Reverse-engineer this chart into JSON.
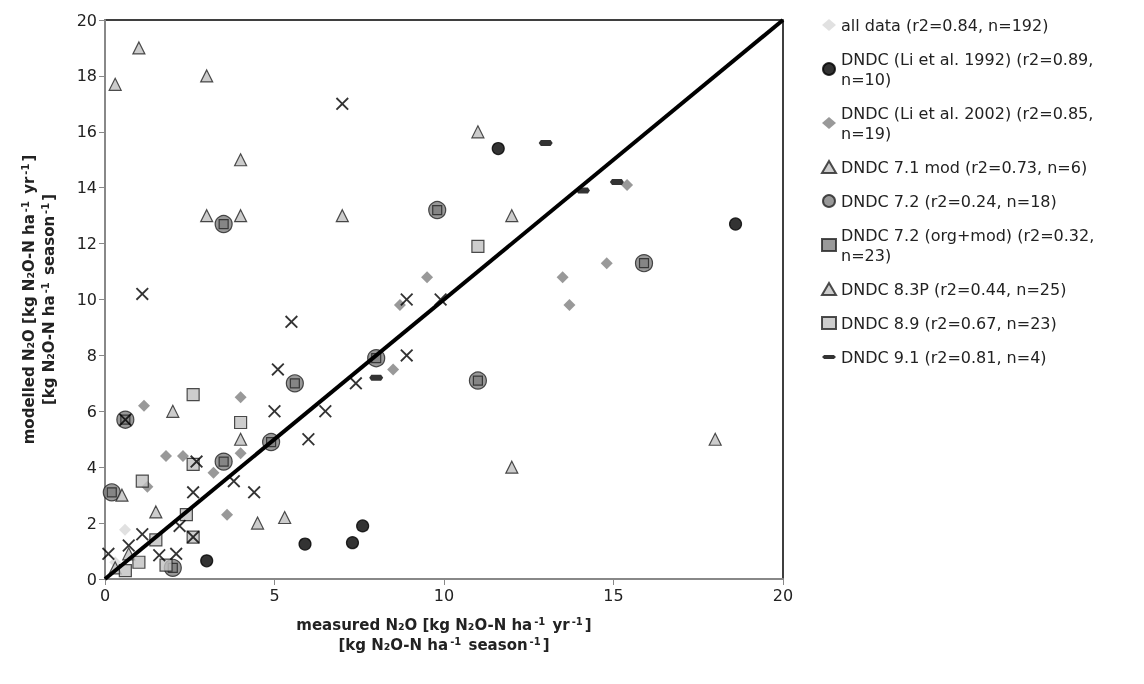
{
  "chart_data": {
    "type": "scatter",
    "xlabel": "measured N₂O [kg N₂O-N ha$^{-1}$ yr$^{-1}$]\n[kg N₂O-N ha$^{-1}$ season$^{-1}$]",
    "ylabel": "modelled N₂O [kg N₂O-N ha$^{-1}$ yr$^{-1}$]\n[kg N₂O-N ha$^{-1}$ season$^{-1}$]",
    "xlim": [
      0,
      20
    ],
    "xticks": [
      0,
      5,
      10,
      15,
      20
    ],
    "ylim": [
      0,
      20
    ],
    "yticks": [
      0,
      2,
      4,
      6,
      8,
      10,
      12,
      14,
      16,
      18,
      20
    ],
    "grid": false,
    "legend": "right",
    "series": [
      {
        "name": "all data (r2=0.84, n=192)",
        "color": "#d9d9d9",
        "marker": "diamond",
        "x": [
          0.59,
          0.3
        ],
        "values": [
          1.76,
          0.6
        ]
      },
      {
        "name": "DNDC (Li et al. 1992) (r2=0.89, n=10)",
        "color": "#000000",
        "marker": "circle",
        "x": [
          3,
          5.9,
          7.3,
          7.6,
          11.6,
          18.6
        ],
        "values": [
          0.65,
          1.25,
          1.3,
          1.9,
          15.4,
          12.7
        ]
      },
      {
        "name": "DNDC (Li et al. 2002) (r2=0.85, n=19)",
        "color": "#808080",
        "marker": "diamond",
        "x": [
          9.5,
          8.7,
          13.5,
          14.8,
          13.7,
          15.4,
          8.5,
          1.15,
          4.0,
          1.8,
          2.3,
          4.0,
          1.25,
          3.6,
          3.2
        ],
        "values": [
          10.8,
          9.8,
          10.8,
          11.3,
          9.8,
          14.1,
          7.5,
          6.2,
          6.5,
          4.4,
          4.4,
          4.5,
          3.3,
          2.3,
          3.8
        ]
      },
      {
        "name": "DNDC 7.1 mod (r2=0.73, n=6)",
        "color": "#c0c0c0",
        "marker": "triangle",
        "x": [
          1.5,
          0.7,
          0.3
        ],
        "values": [
          2.4,
          0.9,
          0.4
        ]
      },
      {
        "name": "DNDC 7.2 (r2=0.24, n=18)",
        "color": "#808080",
        "marker": "circle",
        "x": [
          3.5,
          9.8,
          8.0,
          5.6,
          15.9,
          11.0,
          0.6,
          0.2,
          3.5,
          4.9,
          2.0
        ],
        "values": [
          12.7,
          13.2,
          7.9,
          7.0,
          11.3,
          7.1,
          5.7,
          3.1,
          4.2,
          4.9,
          0.4
        ]
      },
      {
        "name": "DNDC 7.2 (org+mod) (r2=0.32, n=23)",
        "color": "#7f7f7f",
        "marker": "square",
        "x": [
          3.5,
          9.8,
          8.0,
          5.6,
          15.9,
          11.0,
          0.6,
          0.2,
          3.5,
          4.9,
          2.0
        ],
        "values": [
          12.7,
          13.2,
          7.9,
          7.0,
          11.3,
          7.1,
          5.7,
          3.1,
          4.2,
          4.9,
          0.4
        ]
      },
      {
        "name": "DNDC 8.3P (r2=0.44, n=25)",
        "color": "#bfbfbf",
        "marker": "triangle",
        "x": [
          1.0,
          0.3,
          3.0,
          4.0,
          3.0,
          4.0,
          7.0,
          11.0,
          12.0,
          12.0,
          18.0,
          2.0,
          4.5,
          5.3,
          4.0,
          0.5
        ],
        "values": [
          19.0,
          17.7,
          18.0,
          15.0,
          13.0,
          13.0,
          13.0,
          16.0,
          13.0,
          4.0,
          5.0,
          6.0,
          2.0,
          2.2,
          5.0,
          3.0
        ]
      },
      {
        "name": "DNDC 8.9 (r2=0.67, n=23)",
        "color": "#c0c0c0",
        "marker": "square",
        "x": [
          1.1,
          2.6,
          4.0,
          2.6,
          2.6,
          2.4,
          11.0,
          1.5,
          1.0,
          1.8,
          0.6
        ],
        "values": [
          3.5,
          4.1,
          5.6,
          6.6,
          1.5,
          2.3,
          11.9,
          1.4,
          0.6,
          0.5,
          0.3
        ]
      },
      {
        "name": "DNDC 9.1 (r2=0.81, n=4)",
        "color": "#000000",
        "x": [
          13.0,
          15.1,
          14.1,
          8.0
        ],
        "values": [
          15.6,
          14.2,
          13.9,
          7.2
        ]
      },
      {
        "color": "#000000",
        "marker": "cross",
        "x": [
          7.0,
          1.1,
          5.5,
          8.9,
          9.9,
          8.9,
          5.1,
          5.0,
          6.5,
          6.0,
          7.4,
          4.4,
          3.8,
          2.7,
          2.6,
          2.6,
          2.2,
          1.1,
          0.7,
          0.1,
          2.1,
          1.6,
          0.6
        ],
        "values": [
          17.0,
          10.2,
          9.2,
          10.0,
          10.0,
          8.0,
          7.5,
          6.0,
          6.0,
          5.0,
          7.0,
          3.1,
          3.5,
          4.2,
          3.1,
          1.5,
          1.9,
          1.6,
          1.2,
          0.9,
          0.9,
          0.85,
          5.7
        ]
      },
      {
        "type": "line",
        "color": "#000000",
        "marker": "none",
        "x": [
          0,
          20
        ],
        "values": [
          0,
          20
        ]
      }
    ]
  }
}
